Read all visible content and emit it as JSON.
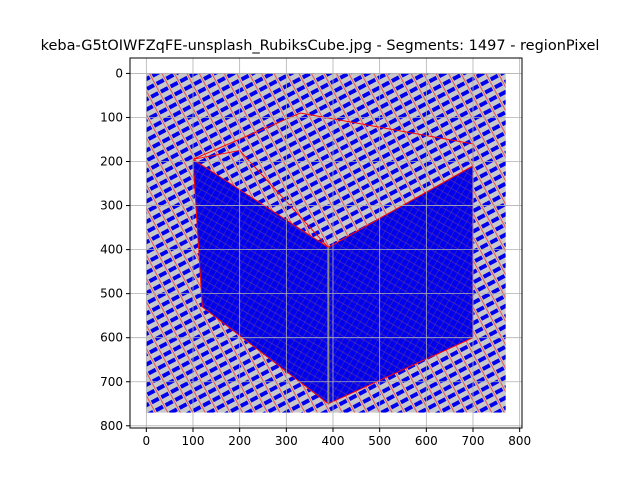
{
  "chart_data": {
    "type": "image",
    "title": "keba-G5tOIWFZqFE-unsplash_RubiksCube.jpg - Segments: 1497 - regionPixel",
    "xlabel": "",
    "ylabel": "",
    "xlim": [
      -35,
      805
    ],
    "ylim": [
      805,
      -35
    ],
    "x_ticks": [
      0,
      100,
      200,
      300,
      400,
      500,
      600,
      700,
      800
    ],
    "y_ticks": [
      0,
      100,
      200,
      300,
      400,
      500,
      600,
      700,
      800
    ],
    "x_tick_labels": [
      "0",
      "100",
      "200",
      "300",
      "400",
      "500",
      "600",
      "700",
      "800"
    ],
    "y_tick_labels": [
      "0",
      "100",
      "200",
      "300",
      "400",
      "500",
      "600",
      "700",
      "800"
    ],
    "grid": true,
    "image_extent": {
      "x": [
        0,
        770
      ],
      "y": [
        0,
        770
      ]
    },
    "cube_outline": {
      "top_face": [
        [
          100,
          195
        ],
        [
          330,
          90
        ],
        [
          700,
          160
        ],
        [
          700,
          210
        ],
        [
          390,
          395
        ],
        [
          200,
          175
        ]
      ],
      "left_face": [
        [
          100,
          195
        ],
        [
          390,
          395
        ],
        [
          390,
          750
        ],
        [
          120,
          530
        ]
      ],
      "right_face": [
        [
          390,
          395
        ],
        [
          700,
          210
        ],
        [
          700,
          600
        ],
        [
          390,
          750
        ]
      ]
    },
    "colors": {
      "background": "#c8c8c8",
      "segment_fill": "#0000ee",
      "boundary": "#ff0000",
      "highlight": "#888888",
      "grid": "#b0b0b0"
    }
  }
}
